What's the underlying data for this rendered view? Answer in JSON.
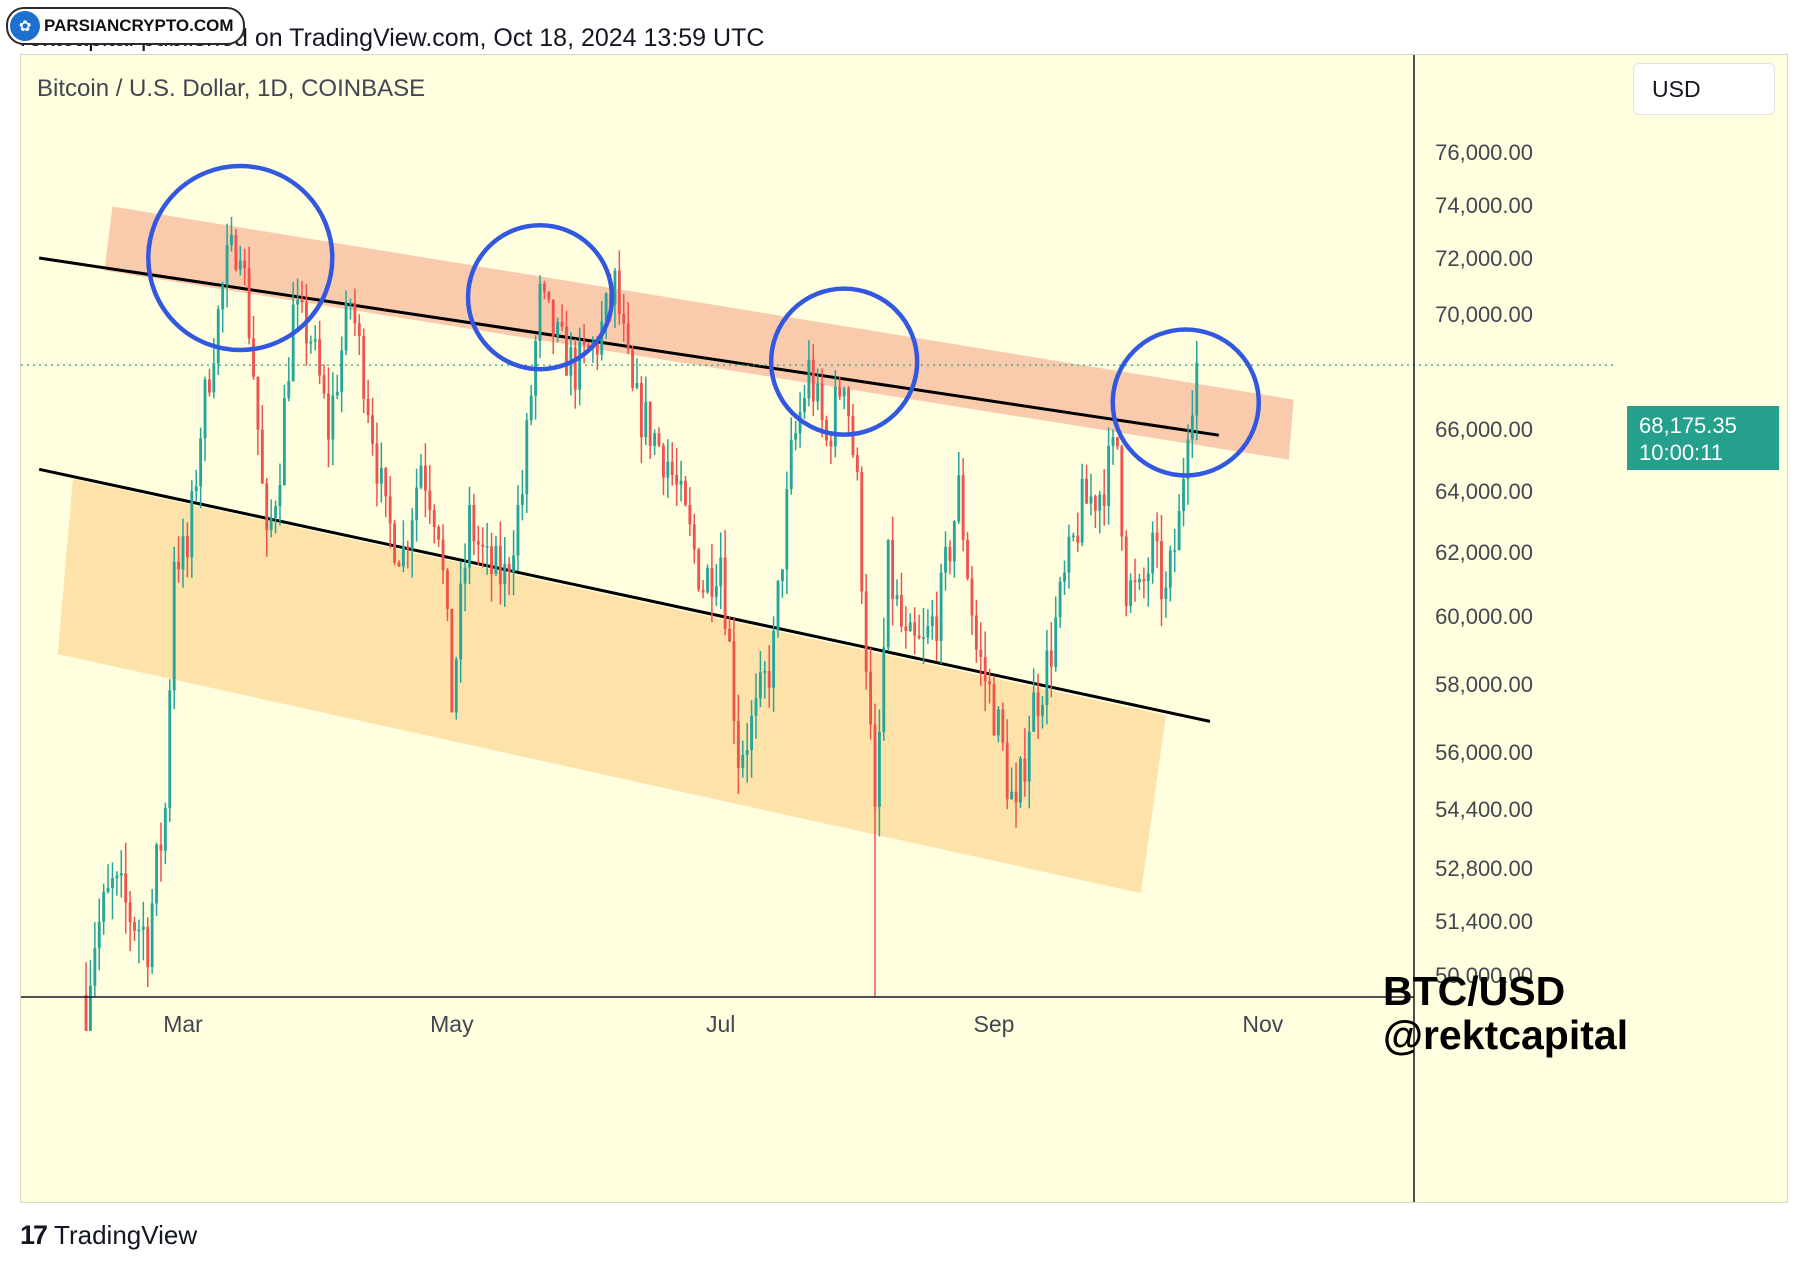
{
  "header": {
    "publish_line": "rektcapital published on TradingView.com, Oct 18, 2024 13:59 UTC",
    "badge_label": "PARSIANCRYPTO.COM",
    "badge_icon": "parsian-logo-icon"
  },
  "chart_header": {
    "symbol_title": "Bitcoin / U.S. Dollar, 1D, COINBASE",
    "currency": "USD"
  },
  "last_price": {
    "price": "68,175.35",
    "countdown": "10:00:11"
  },
  "watermark": {
    "line1": "BTC/USD",
    "line2": "@rektcapital"
  },
  "footer": {
    "brand": "TradingView",
    "brand_icon": "tradingview-logo-icon"
  },
  "colors": {
    "background": "#ffffe0",
    "up": "#26a69a",
    "down": "#ef5350",
    "resistance_zone": "#f9c4a6",
    "support_zone": "#fde0a3",
    "circles": "#3358e0",
    "price_label": "#24a08c"
  },
  "chart_data": {
    "type": "candlestick",
    "title": "Bitcoin / U.S. Dollar, 1D, COINBASE",
    "currency": "USD",
    "x_ticks": [
      "Mar",
      "May",
      "Jul",
      "Sep",
      "Nov"
    ],
    "y_ticks": [
      "76,000.00",
      "74,000.00",
      "72,000.00",
      "70,000.00",
      "66,000.00",
      "64,000.00",
      "62,000.00",
      "60,000.00",
      "58,000.00",
      "56,000.00",
      "54,400.00",
      "52,800.00",
      "51,400.00",
      "50,000.00"
    ],
    "y_tick_values": [
      76000,
      74000,
      72000,
      70000,
      66000,
      64000,
      62000,
      60000,
      58000,
      56000,
      54400,
      52800,
      51400,
      50000
    ],
    "grid": false,
    "last_price": 68175.35,
    "last_price_line": "dotted",
    "candle_close_path": [
      [
        "2024-02-08",
        49500
      ],
      [
        "2024-02-10",
        51000
      ],
      [
        "2024-02-14",
        52200
      ],
      [
        "2024-02-18",
        51600
      ],
      [
        "2024-02-22",
        51000
      ],
      [
        "2024-02-26",
        54400
      ],
      [
        "2024-02-28",
        62000
      ],
      [
        "2024-03-02",
        61800
      ],
      [
        "2024-03-05",
        66000
      ],
      [
        "2024-03-08",
        69000
      ],
      [
        "2024-03-11",
        71800
      ],
      [
        "2024-03-14",
        72800
      ],
      [
        "2024-03-17",
        68000
      ],
      [
        "2024-03-20",
        62000
      ],
      [
        "2024-03-23",
        65000
      ],
      [
        "2024-03-26",
        70000
      ],
      [
        "2024-03-30",
        69200
      ],
      [
        "2024-04-03",
        66000
      ],
      [
        "2024-04-08",
        70500
      ],
      [
        "2024-04-12",
        67000
      ],
      [
        "2024-04-16",
        63000
      ],
      [
        "2024-04-20",
        62000
      ],
      [
        "2024-04-24",
        65000
      ],
      [
        "2024-04-28",
        63000
      ],
      [
        "2024-05-01",
        57500
      ],
      [
        "2024-05-05",
        63000
      ],
      [
        "2024-05-09",
        61500
      ],
      [
        "2024-05-13",
        61200
      ],
      [
        "2024-05-17",
        64000
      ],
      [
        "2024-05-21",
        70500
      ],
      [
        "2024-05-25",
        69000
      ],
      [
        "2024-05-29",
        68000
      ],
      [
        "2024-06-03",
        69000
      ],
      [
        "2024-06-07",
        71000
      ],
      [
        "2024-06-11",
        67000
      ],
      [
        "2024-06-15",
        66000
      ],
      [
        "2024-06-19",
        65000
      ],
      [
        "2024-06-23",
        63000
      ],
      [
        "2024-06-27",
        61000
      ],
      [
        "2024-07-01",
        62000
      ],
      [
        "2024-07-05",
        56000
      ],
      [
        "2024-07-09",
        57000
      ],
      [
        "2024-07-13",
        59000
      ],
      [
        "2024-07-17",
        65000
      ],
      [
        "2024-07-21",
        68000
      ],
      [
        "2024-07-25",
        65500
      ],
      [
        "2024-07-29",
        68000
      ],
      [
        "2024-08-01",
        64000
      ],
      [
        "2024-08-05",
        53800
      ],
      [
        "2024-08-08",
        61500
      ],
      [
        "2024-08-12",
        59000
      ],
      [
        "2024-08-16",
        59000
      ],
      [
        "2024-08-20",
        60500
      ],
      [
        "2024-08-24",
        64000
      ],
      [
        "2024-08-28",
        59000
      ],
      [
        "2024-09-01",
        57300
      ],
      [
        "2024-09-06",
        54000
      ],
      [
        "2024-09-09",
        57000
      ],
      [
        "2024-09-13",
        58500
      ],
      [
        "2024-09-17",
        61000
      ],
      [
        "2024-09-21",
        63500
      ],
      [
        "2024-09-25",
        64000
      ],
      [
        "2024-09-29",
        65500
      ],
      [
        "2024-10-01",
        61000
      ],
      [
        "2024-10-04",
        60500
      ],
      [
        "2024-10-07",
        62000
      ],
      [
        "2024-10-10",
        60500
      ],
      [
        "2024-10-13",
        63000
      ],
      [
        "2024-10-15",
        66500
      ],
      [
        "2024-10-17",
        68175
      ]
    ],
    "annotations": {
      "upper_channel_line": [
        [
          "2024-02-01",
          72000
        ],
        [
          "2024-10-22",
          65800
        ]
      ],
      "lower_channel_line": [
        [
          "2024-02-01",
          64700
        ],
        [
          "2024-10-20",
          56900
        ]
      ],
      "resistance_zone_label": "",
      "circles_at_peaks": [
        "2024-03-14",
        "2024-05-21",
        "2024-07-29",
        "2024-10-17"
      ]
    }
  }
}
